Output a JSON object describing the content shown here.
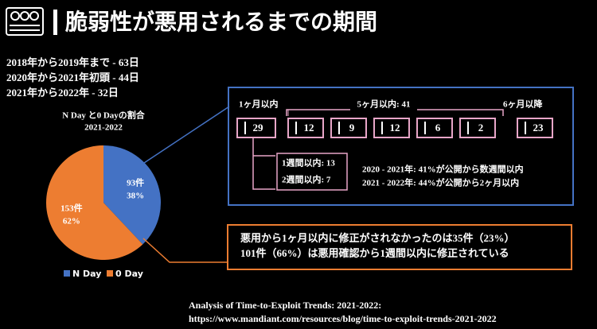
{
  "title": "脆弱性が悪用されるまでの期間",
  "summary": [
    "2018年から2019年まで - 63日",
    "2020年から2021年初頭 - 44日",
    "2021年から2022年 - 32日"
  ],
  "chart_data": {
    "type": "pie",
    "title": "N Day と0 Dayの割合",
    "subtitle": "2021-2022",
    "categories": [
      "N Day",
      "0 Day"
    ],
    "values": [
      38,
      62
    ],
    "value_labels": [
      "38%",
      "62%"
    ],
    "counts": [
      93,
      153
    ],
    "count_labels": [
      "93件",
      "153件"
    ],
    "colors": [
      "#4472c4",
      "#ed7d31"
    ],
    "legend": "bottom"
  },
  "timeline": {
    "labels": [
      "1ヶ月以内",
      "5ヶ月以内: 41",
      "6ヶ月以降"
    ],
    "boxes": [
      29,
      12,
      9,
      12,
      6,
      2,
      23
    ],
    "week_notes": [
      "1週間以内: 13",
      "2週間以内: 7"
    ],
    "notes": [
      "2020 - 2021年: 41%が公開から数週間以内",
      "2021 - 2022年: 44%が公開から2ヶ月以内"
    ]
  },
  "highlight": [
    "悪用から1ヶ月以内に修正がされなかったのは35件（23%）",
    "101件（66%）は悪用確認から1週間以内に修正されている"
  ],
  "source": [
    "Analysis of Time-to-Exploit Trends: 2021-2022:",
    "https://www.mandiant.com/resources/blog/time-to-exploit-trends-2021-2022"
  ]
}
